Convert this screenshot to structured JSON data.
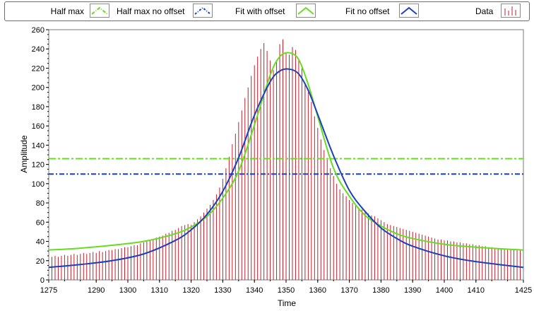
{
  "legend": [
    {
      "label": "Half max",
      "color": "#66dd22",
      "style": "dashdot",
      "marker": "chevron"
    },
    {
      "label": "Half max no offset",
      "color": "#1a3fbf",
      "style": "dashdot",
      "marker": "chevron"
    },
    {
      "label": "Fit with offset",
      "color": "#66dd22",
      "style": "solid",
      "marker": "chevron"
    },
    {
      "label": "Fit no offset",
      "color": "#1a3fbf",
      "style": "solid",
      "marker": "chevron"
    },
    {
      "label": "Data",
      "color": "#c0202a",
      "style": "stems",
      "marker": "stems"
    }
  ],
  "chart_data": {
    "type": "line",
    "xlabel": "Time",
    "ylabel": "Amplitude",
    "xlim": [
      1275,
      1425
    ],
    "ylim": [
      0,
      260
    ],
    "xticks": [
      1275,
      1290,
      1300,
      1310,
      1320,
      1330,
      1340,
      1350,
      1360,
      1370,
      1380,
      1390,
      1400,
      1410,
      1425
    ],
    "yticks": [
      0,
      20,
      40,
      60,
      80,
      100,
      120,
      140,
      160,
      180,
      200,
      220,
      240,
      260
    ],
    "grid": false,
    "legend_position": "top",
    "series": [
      {
        "name": "Half max",
        "type": "hline",
        "y": 126,
        "color": "#66dd22"
      },
      {
        "name": "Half max no offset",
        "type": "hline",
        "y": 110,
        "color": "#1a3fbf"
      },
      {
        "name": "Fit with offset",
        "type": "line",
        "color": "#66dd22",
        "x": [
          1275,
          1285,
          1295,
          1305,
          1315,
          1320,
          1325,
          1330,
          1335,
          1340,
          1345,
          1348,
          1351,
          1354,
          1357,
          1360,
          1365,
          1370,
          1375,
          1380,
          1385,
          1390,
          1400,
          1410,
          1425
        ],
        "y": [
          31,
          33,
          36,
          40,
          48,
          55,
          66,
          85,
          113,
          161,
          213,
          232,
          236,
          229,
          203,
          170,
          116,
          87,
          67,
          56,
          48,
          43,
          37,
          34,
          31
        ]
      },
      {
        "name": "Fit no offset",
        "type": "line",
        "color": "#1a3fbf",
        "x": [
          1275,
          1285,
          1295,
          1305,
          1315,
          1320,
          1325,
          1330,
          1335,
          1340,
          1345,
          1348,
          1351,
          1354,
          1357,
          1360,
          1365,
          1370,
          1375,
          1380,
          1385,
          1390,
          1400,
          1410,
          1425
        ],
        "y": [
          13,
          16,
          20,
          27,
          41,
          52,
          68,
          92,
          127,
          171,
          206,
          217,
          219,
          214,
          197,
          172,
          129,
          93,
          71,
          54,
          43,
          35,
          25,
          19,
          13
        ]
      },
      {
        "name": "Data",
        "type": "stem",
        "color": "#c0202a",
        "x": [
          1276,
          1277,
          1278,
          1279,
          1280,
          1281,
          1282,
          1283,
          1284,
          1285,
          1286,
          1287,
          1288,
          1289,
          1290,
          1291,
          1292,
          1293,
          1294,
          1295,
          1296,
          1297,
          1298,
          1299,
          1300,
          1301,
          1302,
          1303,
          1304,
          1305,
          1306,
          1307,
          1308,
          1309,
          1310,
          1311,
          1312,
          1313,
          1314,
          1315,
          1316,
          1317,
          1318,
          1319,
          1320,
          1321,
          1322,
          1323,
          1324,
          1325,
          1326,
          1327,
          1328,
          1329,
          1330,
          1331,
          1332,
          1333,
          1334,
          1335,
          1336,
          1337,
          1338,
          1339,
          1340,
          1341,
          1342,
          1343,
          1344,
          1345,
          1346,
          1347,
          1348,
          1349,
          1350,
          1351,
          1352,
          1353,
          1354,
          1355,
          1356,
          1357,
          1358,
          1359,
          1360,
          1361,
          1362,
          1363,
          1364,
          1365,
          1366,
          1367,
          1368,
          1369,
          1370,
          1371,
          1372,
          1373,
          1374,
          1375,
          1376,
          1377,
          1378,
          1379,
          1380,
          1381,
          1382,
          1383,
          1384,
          1385,
          1386,
          1387,
          1388,
          1389,
          1390,
          1391,
          1392,
          1393,
          1394,
          1395,
          1396,
          1397,
          1398,
          1399,
          1400,
          1401,
          1402,
          1403,
          1404,
          1405,
          1406,
          1407,
          1408,
          1409,
          1410,
          1411,
          1412,
          1413,
          1414,
          1415,
          1416,
          1417,
          1418,
          1419,
          1420,
          1421,
          1422,
          1423,
          1424
        ],
        "y": [
          24,
          25,
          24,
          25,
          26,
          25,
          26,
          27,
          26,
          27,
          28,
          27,
          28,
          29,
          28,
          30,
          29,
          30,
          31,
          31,
          32,
          32,
          33,
          34,
          34,
          35,
          36,
          36,
          38,
          39,
          40,
          41,
          42,
          44,
          45,
          46,
          48,
          49,
          51,
          52,
          54,
          56,
          57,
          58,
          57,
          60,
          63,
          66,
          70,
          74,
          78,
          83,
          89,
          96,
          105,
          116,
          128,
          141,
          152,
          164,
          176,
          189,
          200,
          212,
          223,
          232,
          240,
          246,
          238,
          228,
          218,
          226,
          245,
          250,
          236,
          234,
          242,
          239,
          230,
          220,
          205,
          195,
          185,
          170,
          158,
          146,
          135,
          125,
          116,
          108,
          100,
          94,
          90,
          87,
          83,
          80,
          77,
          75,
          73,
          71,
          69,
          67,
          66,
          64,
          62,
          60,
          58,
          57,
          56,
          55,
          54,
          53,
          52,
          51,
          50,
          49,
          48,
          47,
          46,
          45,
          44,
          43,
          42,
          42,
          41,
          41,
          40,
          40,
          39,
          39,
          38,
          38,
          37,
          37,
          36,
          36,
          35,
          35,
          34,
          34,
          33,
          33,
          33,
          32,
          32,
          32,
          31,
          31,
          31
        ]
      }
    ]
  }
}
